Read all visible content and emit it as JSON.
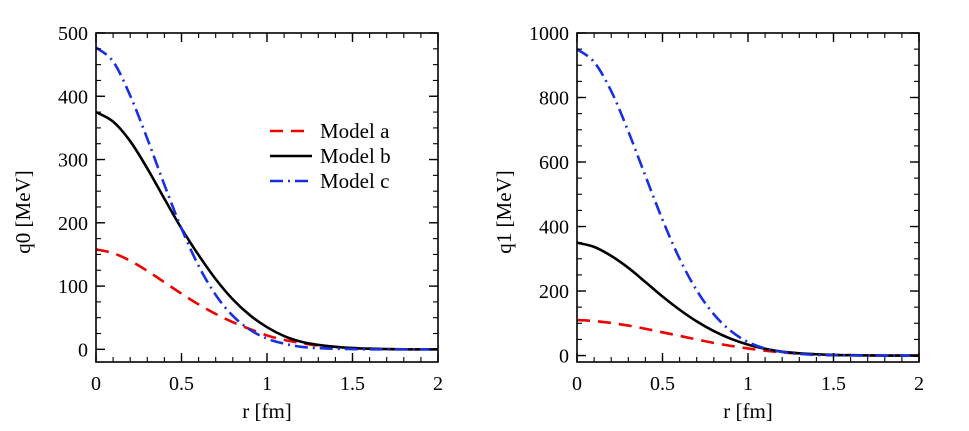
{
  "colors": {
    "model_a": "#ee0000",
    "model_b": "#000000",
    "model_c": "#1a2fe0",
    "frame": "#000000",
    "background": "#ffffff"
  },
  "legend": {
    "placement": "top-right of left panel",
    "entries": [
      {
        "label": "Model a",
        "style": "dashed",
        "color": "#ee0000"
      },
      {
        "label": "Model b",
        "style": "solid",
        "color": "#000000"
      },
      {
        "label": "Model c",
        "style": "dash-dot",
        "color": "#1a2fe0"
      }
    ]
  },
  "chart_data": [
    {
      "type": "line",
      "xlabel": "r [fm]",
      "ylabel": "q0 [MeV]",
      "xlim": [
        0,
        2
      ],
      "ylim": [
        -20,
        500
      ],
      "xticks": [
        0,
        0.5,
        1,
        1.5,
        2
      ],
      "xtick_labels": [
        "0",
        "0.5",
        "1",
        "1.5",
        "2"
      ],
      "yticks": [
        0,
        100,
        200,
        300,
        400,
        500
      ],
      "ytick_labels": [
        "0",
        "100",
        "200",
        "300",
        "400",
        "500"
      ],
      "x_minor_step": 0.1,
      "y_minor_step": 25,
      "grid": false,
      "has_legend": true,
      "x": [
        0,
        0.1,
        0.2,
        0.3,
        0.4,
        0.5,
        0.6,
        0.7,
        0.8,
        0.9,
        1.0,
        1.1,
        1.2,
        1.3,
        1.4,
        1.5,
        1.6,
        1.7,
        1.8,
        1.9,
        2.0
      ],
      "series": [
        {
          "name": "Model a",
          "style": "dashed",
          "color": "#ee0000",
          "values": [
            158,
            152,
            140,
            124,
            106,
            88,
            71,
            56,
            43,
            32,
            22,
            15,
            10,
            6,
            4,
            2,
            1,
            0.5,
            0,
            0,
            0
          ]
        },
        {
          "name": "Model b",
          "style": "solid",
          "color": "#000000",
          "values": [
            375,
            360,
            329,
            286,
            238,
            191,
            149,
            111,
            79,
            54,
            35,
            21,
            12,
            7,
            4,
            2,
            1,
            0.5,
            0,
            0,
            0
          ]
        },
        {
          "name": "Model c",
          "style": "dash-dot",
          "color": "#1a2fe0",
          "values": [
            477,
            455,
            401,
            333,
            260,
            191,
            132,
            86,
            53,
            31,
            17,
            9,
            4,
            2,
            1,
            0.5,
            0,
            0,
            0,
            0,
            0
          ]
        }
      ]
    },
    {
      "type": "line",
      "xlabel": "r [fm]",
      "ylabel": "q1 [MeV]",
      "xlim": [
        0,
        2
      ],
      "ylim": [
        -20,
        1000
      ],
      "xticks": [
        0,
        0.5,
        1,
        1.5,
        2
      ],
      "xtick_labels": [
        "0",
        "0.5",
        "1",
        "1.5",
        "2"
      ],
      "yticks": [
        0,
        200,
        400,
        600,
        800,
        1000
      ],
      "ytick_labels": [
        "0",
        "200",
        "400",
        "600",
        "800",
        "1000"
      ],
      "x_minor_step": 0.1,
      "y_minor_step": 50,
      "grid": false,
      "has_legend": false,
      "x": [
        0,
        0.1,
        0.2,
        0.3,
        0.4,
        0.5,
        0.6,
        0.7,
        0.8,
        0.9,
        1.0,
        1.1,
        1.2,
        1.3,
        1.4,
        1.5,
        1.6,
        1.7,
        1.8,
        1.9,
        2.0
      ],
      "series": [
        {
          "name": "Model a",
          "style": "dashed",
          "color": "#ee0000",
          "values": [
            110,
            107,
            101,
            93,
            83,
            72,
            61,
            50,
            39,
            30,
            22,
            15,
            10,
            6,
            4,
            2,
            1,
            0.5,
            0,
            0,
            0
          ]
        },
        {
          "name": "Model b",
          "style": "solid",
          "color": "#000000",
          "values": [
            350,
            337,
            309,
            272,
            228,
            183,
            142,
            106,
            76,
            52,
            34,
            21,
            12,
            7,
            4,
            2,
            1,
            0.5,
            0,
            0,
            0
          ]
        },
        {
          "name": "Model c",
          "style": "dash-dot",
          "color": "#1a2fe0",
          "values": [
            950,
            910,
            820,
            695,
            557,
            421,
            300,
            202,
            128,
            76,
            42,
            22,
            11,
            5,
            2,
            1,
            0.5,
            0,
            0,
            0,
            0
          ]
        }
      ]
    }
  ]
}
